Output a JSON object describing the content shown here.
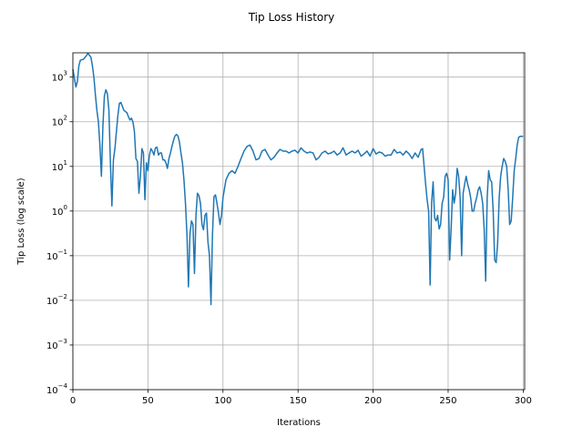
{
  "chart_data": {
    "type": "line",
    "title": "Tip Loss History",
    "xlabel": "Iterations",
    "ylabel": "Tip Loss (log scale)",
    "xlim": [
      0,
      301
    ],
    "ylim": [
      0.0001,
      3500
    ],
    "yscale": "log",
    "grid": true,
    "x_ticks": [
      0,
      50,
      100,
      150,
      200,
      250,
      300
    ],
    "y_ticks": [
      {
        "value": 0.0001,
        "base": "10",
        "exp": "−4"
      },
      {
        "value": 0.001,
        "base": "10",
        "exp": "−3"
      },
      {
        "value": 0.01,
        "base": "10",
        "exp": "−2"
      },
      {
        "value": 0.1,
        "base": "10",
        "exp": "−1"
      },
      {
        "value": 1,
        "base": "10",
        "exp": "0"
      },
      {
        "value": 10,
        "base": "10",
        "exp": "1"
      },
      {
        "value": 100,
        "base": "10",
        "exp": "2"
      },
      {
        "value": 1000,
        "base": "10",
        "exp": "3"
      }
    ],
    "color": "#1f77b4",
    "series": [
      {
        "points": [
          [
            0,
            1500
          ],
          [
            2,
            600
          ],
          [
            3,
            800
          ],
          [
            4,
            1800
          ],
          [
            5,
            2400
          ],
          [
            7,
            2500
          ],
          [
            9,
            3000
          ],
          [
            10,
            3400
          ],
          [
            12,
            2800
          ],
          [
            13,
            1800
          ],
          [
            14,
            1000
          ],
          [
            15,
            400
          ],
          [
            16,
            180
          ],
          [
            17,
            100
          ],
          [
            18,
            30
          ],
          [
            19,
            6
          ],
          [
            20,
            80
          ],
          [
            21,
            380
          ],
          [
            22,
            520
          ],
          [
            23,
            420
          ],
          [
            24,
            180
          ],
          [
            25,
            12
          ],
          [
            26,
            1.3
          ],
          [
            27,
            14
          ],
          [
            28,
            25
          ],
          [
            29,
            60
          ],
          [
            30,
            140
          ],
          [
            31,
            260
          ],
          [
            32,
            270
          ],
          [
            33,
            220
          ],
          [
            34,
            180
          ],
          [
            36,
            160
          ],
          [
            37,
            130
          ],
          [
            38,
            110
          ],
          [
            39,
            120
          ],
          [
            40,
            100
          ],
          [
            41,
            60
          ],
          [
            42,
            15
          ],
          [
            43,
            13
          ],
          [
            44,
            2.5
          ],
          [
            45,
            6
          ],
          [
            46,
            25
          ],
          [
            47,
            20
          ],
          [
            48,
            1.8
          ],
          [
            49,
            12
          ],
          [
            50,
            8
          ],
          [
            51,
            18
          ],
          [
            52,
            25
          ],
          [
            53,
            22
          ],
          [
            54,
            18
          ],
          [
            55,
            26
          ],
          [
            56,
            27
          ],
          [
            57,
            18
          ],
          [
            58,
            20
          ],
          [
            59,
            20
          ],
          [
            60,
            14
          ],
          [
            61,
            14
          ],
          [
            62,
            12
          ],
          [
            63,
            9
          ],
          [
            64,
            15
          ],
          [
            65,
            20
          ],
          [
            66,
            28
          ],
          [
            67,
            38
          ],
          [
            68,
            48
          ],
          [
            69,
            52
          ],
          [
            70,
            48
          ],
          [
            71,
            35
          ],
          [
            72,
            20
          ],
          [
            73,
            12
          ],
          [
            74,
            5
          ],
          [
            75,
            1.5
          ],
          [
            76,
            0.3
          ],
          [
            77,
            0.02
          ],
          [
            78,
            0.3
          ],
          [
            79,
            0.6
          ],
          [
            80,
            0.5
          ],
          [
            81,
            0.04
          ],
          [
            82,
            0.8
          ],
          [
            83,
            2.5
          ],
          [
            84,
            2.2
          ],
          [
            85,
            1.5
          ],
          [
            86,
            0.5
          ],
          [
            87,
            0.38
          ],
          [
            88,
            0.8
          ],
          [
            89,
            0.9
          ],
          [
            90,
            0.2
          ],
          [
            91,
            0.1
          ],
          [
            92,
            0.008
          ],
          [
            93,
            0.3
          ],
          [
            94,
            2.1
          ],
          [
            95,
            2.3
          ],
          [
            96,
            1.5
          ],
          [
            97,
            0.9
          ],
          [
            98,
            0.5
          ],
          [
            99,
            0.8
          ],
          [
            100,
            2
          ],
          [
            102,
            5
          ],
          [
            104,
            7
          ],
          [
            106,
            8
          ],
          [
            108,
            7
          ],
          [
            110,
            10
          ],
          [
            112,
            15
          ],
          [
            114,
            22
          ],
          [
            116,
            28
          ],
          [
            118,
            30
          ],
          [
            120,
            22
          ],
          [
            122,
            14
          ],
          [
            124,
            15
          ],
          [
            126,
            22
          ],
          [
            128,
            24
          ],
          [
            130,
            18
          ],
          [
            132,
            14
          ],
          [
            134,
            16
          ],
          [
            136,
            20
          ],
          [
            138,
            24
          ],
          [
            140,
            22
          ],
          [
            142,
            22
          ],
          [
            144,
            20
          ],
          [
            146,
            22
          ],
          [
            148,
            23
          ],
          [
            150,
            20
          ],
          [
            152,
            26
          ],
          [
            154,
            22
          ],
          [
            156,
            20
          ],
          [
            158,
            21
          ],
          [
            160,
            20
          ],
          [
            162,
            14
          ],
          [
            164,
            16
          ],
          [
            166,
            20
          ],
          [
            168,
            22
          ],
          [
            170,
            19
          ],
          [
            172,
            20
          ],
          [
            174,
            22
          ],
          [
            176,
            18
          ],
          [
            178,
            20
          ],
          [
            180,
            26
          ],
          [
            182,
            18
          ],
          [
            184,
            20
          ],
          [
            186,
            22
          ],
          [
            188,
            20
          ],
          [
            190,
            23
          ],
          [
            192,
            17
          ],
          [
            194,
            19
          ],
          [
            196,
            22
          ],
          [
            198,
            17
          ],
          [
            200,
            25
          ],
          [
            202,
            19
          ],
          [
            204,
            21
          ],
          [
            206,
            20
          ],
          [
            208,
            17
          ],
          [
            210,
            18
          ],
          [
            212,
            18
          ],
          [
            214,
            24
          ],
          [
            216,
            20
          ],
          [
            218,
            21
          ],
          [
            220,
            18
          ],
          [
            222,
            22
          ],
          [
            224,
            19
          ],
          [
            226,
            15
          ],
          [
            228,
            20
          ],
          [
            230,
            16
          ],
          [
            232,
            24
          ],
          [
            233,
            25
          ],
          [
            234,
            10
          ],
          [
            235,
            4
          ],
          [
            236,
            1.8
          ],
          [
            237,
            1
          ],
          [
            238,
            0.022
          ],
          [
            239,
            1.6
          ],
          [
            240,
            4.5
          ],
          [
            241,
            0.7
          ],
          [
            242,
            0.6
          ],
          [
            243,
            0.8
          ],
          [
            244,
            0.4
          ],
          [
            245,
            0.5
          ],
          [
            246,
            1.5
          ],
          [
            247,
            2
          ],
          [
            248,
            6
          ],
          [
            249,
            7
          ],
          [
            250,
            5
          ],
          [
            251,
            0.08
          ],
          [
            252,
            0.4
          ],
          [
            253,
            3
          ],
          [
            254,
            1.5
          ],
          [
            255,
            2.5
          ],
          [
            256,
            9
          ],
          [
            257,
            6
          ],
          [
            258,
            2
          ],
          [
            259,
            0.1
          ],
          [
            260,
            2.5
          ],
          [
            261,
            4
          ],
          [
            262,
            6
          ],
          [
            263,
            4
          ],
          [
            264,
            3
          ],
          [
            265,
            2
          ],
          [
            266,
            1
          ],
          [
            267,
            1
          ],
          [
            268,
            1.5
          ],
          [
            269,
            2
          ],
          [
            270,
            3
          ],
          [
            271,
            3.5
          ],
          [
            272,
            2.5
          ],
          [
            273,
            1.5
          ],
          [
            274,
            0.4
          ],
          [
            275,
            0.027
          ],
          [
            276,
            2
          ],
          [
            277,
            8
          ],
          [
            278,
            5
          ],
          [
            279,
            4.5
          ],
          [
            280,
            1
          ],
          [
            281,
            0.08
          ],
          [
            282,
            0.07
          ],
          [
            283,
            0.2
          ],
          [
            284,
            2
          ],
          [
            285,
            6
          ],
          [
            286,
            10
          ],
          [
            287,
            15
          ],
          [
            288,
            13
          ],
          [
            289,
            10
          ],
          [
            290,
            3
          ],
          [
            291,
            0.5
          ],
          [
            292,
            0.6
          ],
          [
            293,
            2
          ],
          [
            294,
            8
          ],
          [
            295,
            15
          ],
          [
            296,
            30
          ],
          [
            297,
            45
          ],
          [
            298,
            47
          ],
          [
            299,
            47
          ],
          [
            300,
            47
          ]
        ]
      }
    ]
  }
}
